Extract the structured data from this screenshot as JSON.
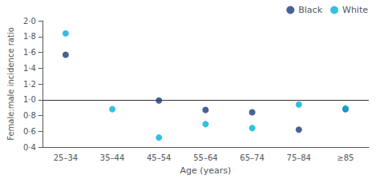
{
  "chart_data": {
    "type": "scatter",
    "xlabel": "Age (years)",
    "ylabel": "Female:male incidence ratio",
    "categories": [
      "25–34",
      "35–44",
      "45–54",
      "55–64",
      "65–74",
      "75–84",
      "≥85"
    ],
    "series": [
      {
        "name": "Black",
        "color": "#1a3a7c",
        "values": [
          1.57,
          null,
          0.99,
          0.87,
          0.84,
          0.62,
          0.88
        ]
      },
      {
        "name": "White",
        "color": "#00b0d8",
        "values": [
          1.84,
          0.88,
          0.52,
          0.69,
          0.64,
          0.94,
          0.89
        ]
      }
    ],
    "ylim": [
      0.4,
      2.0
    ],
    "yticks": [
      {
        "value": 0.4,
        "label": "0·4"
      },
      {
        "value": 0.6,
        "label": "0·6"
      },
      {
        "value": 0.8,
        "label": "0·8"
      },
      {
        "value": 1.0,
        "label": "1·0"
      },
      {
        "value": 1.2,
        "label": "1·2"
      },
      {
        "value": 1.4,
        "label": "1·4"
      },
      {
        "value": 1.6,
        "label": "1·6"
      },
      {
        "value": 1.8,
        "label": "1·8"
      },
      {
        "value": 2.0,
        "label": "2·0"
      }
    ],
    "hline_y": 1.0,
    "grid": false,
    "legend": "upper right"
  }
}
